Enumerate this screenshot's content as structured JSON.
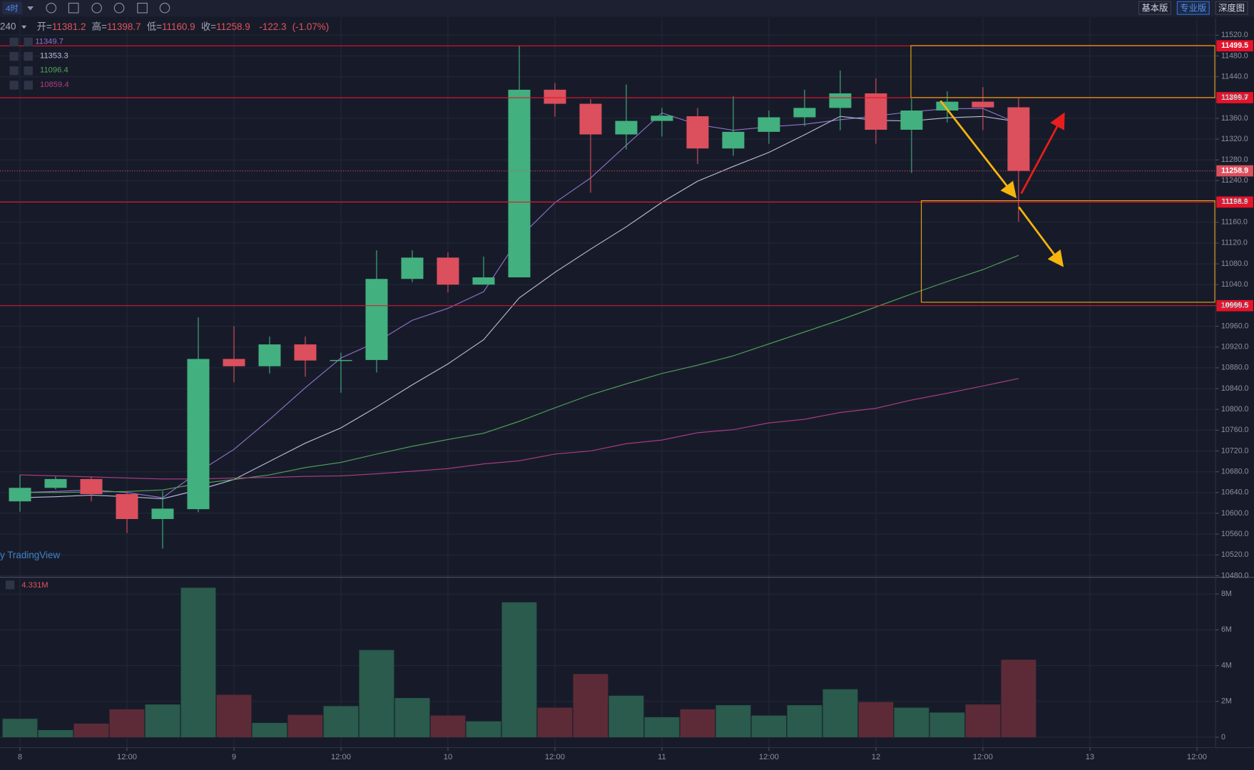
{
  "toolbar": {
    "interval": "4时",
    "buttons": [
      "基本版",
      "专业版",
      "深度图"
    ],
    "active": 1
  },
  "chart_data": {
    "type": "candlestick",
    "interval_label": "240",
    "watermark": "y TradingView",
    "x": [
      0,
      4,
      8,
      12,
      16,
      20,
      24,
      28,
      32,
      36,
      40,
      44,
      48,
      52,
      56,
      60,
      64,
      68,
      72,
      76,
      80,
      84,
      88,
      92,
      96,
      100,
      104,
      108,
      112
    ],
    "xlim": [
      -2.24,
      134.1
    ],
    "xticks": [
      {
        "value": 0,
        "label": "8"
      },
      {
        "value": 12,
        "label": "12:00"
      },
      {
        "value": 24,
        "label": "9"
      },
      {
        "value": 36,
        "label": "12:00"
      },
      {
        "value": 48,
        "label": "10"
      },
      {
        "value": 60,
        "label": "12:00"
      },
      {
        "value": 72,
        "label": "11"
      },
      {
        "value": 84,
        "label": "12:00"
      },
      {
        "value": 96,
        "label": "12"
      },
      {
        "value": 108,
        "label": "12:00"
      },
      {
        "value": 120,
        "label": "13"
      },
      {
        "value": 132,
        "label": "12:00"
      }
    ],
    "ylim": [
      10476.9,
      11553.8
    ],
    "yticks": [
      {
        "value": 10480,
        "label": "10480.0"
      },
      {
        "value": 10520,
        "label": "10520.0"
      },
      {
        "value": 10560,
        "label": "10560.0"
      },
      {
        "value": 10600,
        "label": "10600.0"
      },
      {
        "value": 10640,
        "label": "10640.0"
      },
      {
        "value": 10680,
        "label": "10680.0"
      },
      {
        "value": 10720,
        "label": "10720.0"
      },
      {
        "value": 10760,
        "label": "10760.0"
      },
      {
        "value": 10800,
        "label": "10800.0"
      },
      {
        "value": 10840,
        "label": "10840.0"
      },
      {
        "value": 10880,
        "label": "10880.0"
      },
      {
        "value": 10920,
        "label": "10920.0"
      },
      {
        "value": 10960,
        "label": "10960.0"
      },
      {
        "value": 11000,
        "label": "11000.0"
      },
      {
        "value": 11040,
        "label": "11040.0"
      },
      {
        "value": 11080,
        "label": "11080.0"
      },
      {
        "value": 11120,
        "label": "11120.0"
      },
      {
        "value": 11160,
        "label": "11160.0"
      },
      {
        "value": 11200,
        "label": "11200.0"
      },
      {
        "value": 11240,
        "label": "11240.0"
      },
      {
        "value": 11280,
        "label": "11280.0"
      },
      {
        "value": 11320,
        "label": "11320.0"
      },
      {
        "value": 11360,
        "label": "11360.0"
      },
      {
        "value": 11400,
        "label": "11400.0"
      },
      {
        "value": 11440,
        "label": "11440.0"
      },
      {
        "value": 11480,
        "label": "11480.0"
      },
      {
        "value": 11520,
        "label": "11520.0"
      }
    ],
    "grid": true,
    "ohlc": {
      "up_color": "#42b07f",
      "down_color": "#dc4f5d",
      "open": [
        10623,
        10649,
        10666,
        10637,
        10589,
        10608,
        10897,
        10883,
        10925,
        10893,
        10895,
        11051,
        11092,
        11040,
        11054,
        11415,
        11388,
        11329,
        11355,
        11364,
        11302,
        11334,
        11362,
        11380,
        11408,
        11338,
        11375,
        11392,
        11381.2
      ],
      "high": [
        10674,
        10671,
        10671,
        10640,
        10643,
        10977,
        10960,
        10940,
        10940,
        10909,
        11106,
        11106,
        11102,
        11094,
        11500,
        11428,
        11397,
        11425,
        11380,
        11380,
        11403,
        11375,
        11415,
        11452,
        11437,
        11398,
        11412,
        11420,
        11398.7
      ],
      "low": [
        10603,
        10646,
        10623,
        10562,
        10532,
        10602,
        10852,
        10869,
        10863,
        10832,
        10871,
        11045,
        11025,
        11040,
        11054,
        11363,
        11217,
        11300,
        11325,
        11272,
        11288,
        11311,
        11345,
        11337,
        11311,
        11255,
        11352,
        11337,
        11160.9
      ],
      "close": [
        10649,
        10666,
        10637,
        10589,
        10609,
        10897,
        10883,
        10925,
        10894,
        10895,
        11051,
        11092,
        11040,
        11054,
        11415,
        11388,
        11329,
        11355,
        11365,
        11302,
        11334,
        11362,
        11380,
        11408,
        11338,
        11375,
        11392,
        11381,
        11258.9
      ]
    },
    "header": {
      "open_label": "开=",
      "high_label": "高=",
      "low_label": "低=",
      "close_label": "收=",
      "change": -122.3,
      "change_pct": {
        "value": -1.07,
        "label": "(-1.07%)"
      }
    },
    "series": [
      {
        "color": "#9172cc",
        "values": [
          10640,
          10642,
          10645,
          10640,
          10630,
          10679.6,
          10723,
          10780.6,
          10841.6,
          10898.8,
          10929.6,
          10971.4,
          10994.4,
          11026.4,
          11130.4,
          11197.8,
          11245.2,
          11308.2,
          11370.4,
          11347.8,
          11337,
          11343.6,
          11348.6,
          11357.2,
          11364.4,
          11372.6,
          11378.6,
          11378.8,
          11349.7
        ]
      },
      {
        "color": "#b9bdd9",
        "values": [
          10630,
          10632,
          10635,
          10632,
          10628,
          10645,
          10665,
          10700,
          10735,
          10764.4,
          10804.6,
          10847.2,
          10887.5,
          10934,
          11014.6,
          11063.7,
          11108.3,
          11151.3,
          11198.4,
          11239.1,
          11267.4,
          11294.4,
          11328.4,
          11363.8,
          11356.1,
          11354.8,
          11361.1,
          11363.7,
          11353.3
        ]
      },
      {
        "color": "#52a45c",
        "values": [
          10640,
          10640,
          10641,
          10642,
          10645,
          10657,
          10665,
          10674,
          10688,
          10698,
          10714,
          10729,
          10742,
          10754,
          10777,
          10803,
          10828,
          10849,
          10869,
          10885,
          10903,
          10926,
          10949,
          10972,
          10997,
          11022,
          11046,
          11069,
          11096.4
        ]
      },
      {
        "color": "#b23d8a",
        "values": [
          10674,
          10672,
          10670,
          10668,
          10666,
          10666,
          10668,
          10669,
          10671,
          10672,
          10676,
          10681,
          10686,
          10695,
          10701,
          10714,
          10720,
          10734,
          10741,
          10755,
          10761,
          10774,
          10781,
          10794,
          10802,
          10818,
          10831,
          10845,
          10859.4
        ]
      }
    ],
    "levels": [
      11499.5,
      11399.7,
      11198.9,
      10999.5
    ],
    "level_color": "#e5132a",
    "volume": {
      "up_color": "#2a5b4c",
      "down_color": "#5d2b37",
      "values": [
        1.03,
        0.4,
        0.76,
        1.56,
        1.83,
        8.35,
        2.37,
        0.8,
        1.25,
        1.74,
        4.87,
        2.19,
        1.21,
        0.89,
        7.54,
        1.65,
        3.53,
        2.32,
        1.12,
        1.56,
        1.79,
        1.21,
        1.79,
        2.68,
        1.96,
        1.65,
        1.38,
        1.83,
        4.331
      ],
      "last_label": "4.331M",
      "ylim": [
        -0.58,
        8.89
      ],
      "yticks": [
        0,
        {
          "value": 2,
          "label": "2M"
        },
        {
          "value": 4,
          "label": "4M"
        },
        {
          "value": 6,
          "label": "6M"
        },
        {
          "value": 8,
          "label": "8M"
        }
      ]
    }
  }
}
